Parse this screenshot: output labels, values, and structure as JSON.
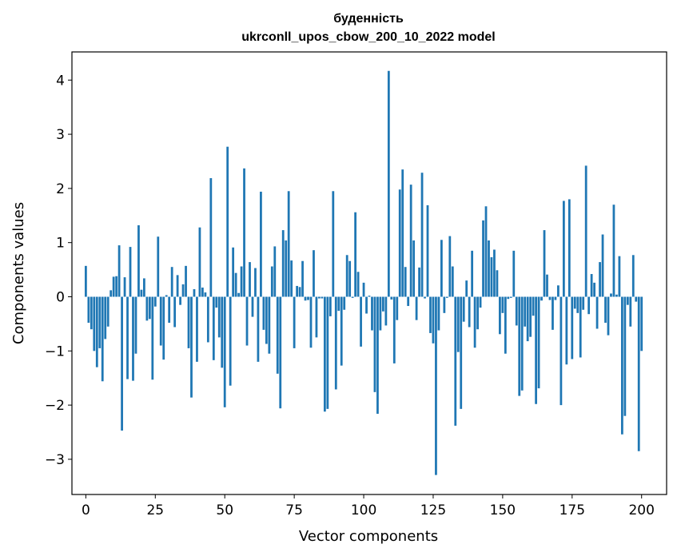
{
  "chart_data": {
    "type": "bar",
    "title": "буденність",
    "subtitle": "ukrconll_upos_cbow_200_10_2022 model",
    "xlabel": "Vector components",
    "ylabel": "Components values",
    "xlim": [
      -5,
      209
    ],
    "ylim": [
      -3.65,
      4.52
    ],
    "xticks": [
      0,
      25,
      50,
      75,
      100,
      125,
      150,
      175,
      200
    ],
    "yticks": [
      -3,
      -2,
      -1,
      0,
      1,
      2,
      3,
      4
    ],
    "bar_color": "#1f77b4",
    "values": [
      0.57,
      -0.48,
      -0.6,
      -1.0,
      -1.3,
      -0.95,
      -1.56,
      -0.78,
      -0.55,
      0.12,
      0.37,
      0.38,
      0.95,
      -2.47,
      0.36,
      -1.52,
      0.92,
      -1.55,
      -1.05,
      1.32,
      0.13,
      0.34,
      -0.44,
      -0.41,
      -1.53,
      -0.18,
      1.11,
      -0.9,
      -1.16,
      0.03,
      -0.48,
      0.55,
      -0.56,
      0.4,
      -0.15,
      0.23,
      0.57,
      -0.95,
      -1.86,
      0.14,
      -1.2,
      1.28,
      0.17,
      0.08,
      -0.84,
      2.19,
      -1.17,
      -0.2,
      -0.75,
      -1.31,
      -2.04,
      2.77,
      -1.64,
      0.91,
      0.44,
      0.07,
      0.56,
      2.37,
      -0.9,
      0.64,
      -0.37,
      0.53,
      -1.2,
      1.94,
      -0.61,
      -0.87,
      -1.05,
      0.56,
      0.93,
      -1.42,
      -2.06,
      1.23,
      1.04,
      1.95,
      0.67,
      -0.95,
      0.2,
      0.18,
      0.66,
      -0.07,
      -0.06,
      -0.94,
      0.86,
      -0.75,
      -0.03,
      -0.03,
      -2.12,
      -2.07,
      -0.36,
      1.95,
      -1.71,
      -0.26,
      -1.27,
      -0.24,
      0.77,
      0.66,
      -0.02,
      1.56,
      0.46,
      -0.92,
      0.26,
      -0.31,
      0.02,
      -0.62,
      -1.76,
      -2.16,
      -0.62,
      -0.27,
      -0.53,
      4.17,
      -0.05,
      -1.23,
      -0.43,
      1.98,
      2.35,
      0.55,
      -0.17,
      2.07,
      1.04,
      -0.43,
      0.54,
      2.29,
      -0.03,
      1.69,
      -0.67,
      -0.86,
      -3.29,
      -0.62,
      1.05,
      -0.3,
      -0.02,
      1.12,
      0.56,
      -2.38,
      -1.02,
      -2.07,
      -0.46,
      0.3,
      -0.56,
      0.85,
      -0.94,
      -0.6,
      -0.2,
      1.41,
      1.67,
      1.04,
      0.73,
      0.87,
      0.49,
      -0.69,
      -0.3,
      -1.05,
      -0.04,
      -0.02,
      0.85,
      -0.53,
      -1.83,
      -1.73,
      -0.55,
      -0.82,
      -0.74,
      -0.35,
      -1.98,
      -1.69,
      -0.07,
      1.23,
      0.41,
      -0.06,
      -0.61,
      -0.06,
      0.21,
      -2.0,
      1.77,
      -1.25,
      1.8,
      -1.15,
      -0.22,
      -0.3,
      -1.12,
      -0.24,
      2.42,
      -0.32,
      0.42,
      0.26,
      -0.59,
      0.64,
      1.15,
      -0.48,
      -0.71,
      0.06,
      1.7,
      0.04,
      0.75,
      -2.54,
      -2.2,
      -0.15,
      -0.55,
      0.77,
      -0.09,
      -2.85,
      -1.0
    ]
  }
}
